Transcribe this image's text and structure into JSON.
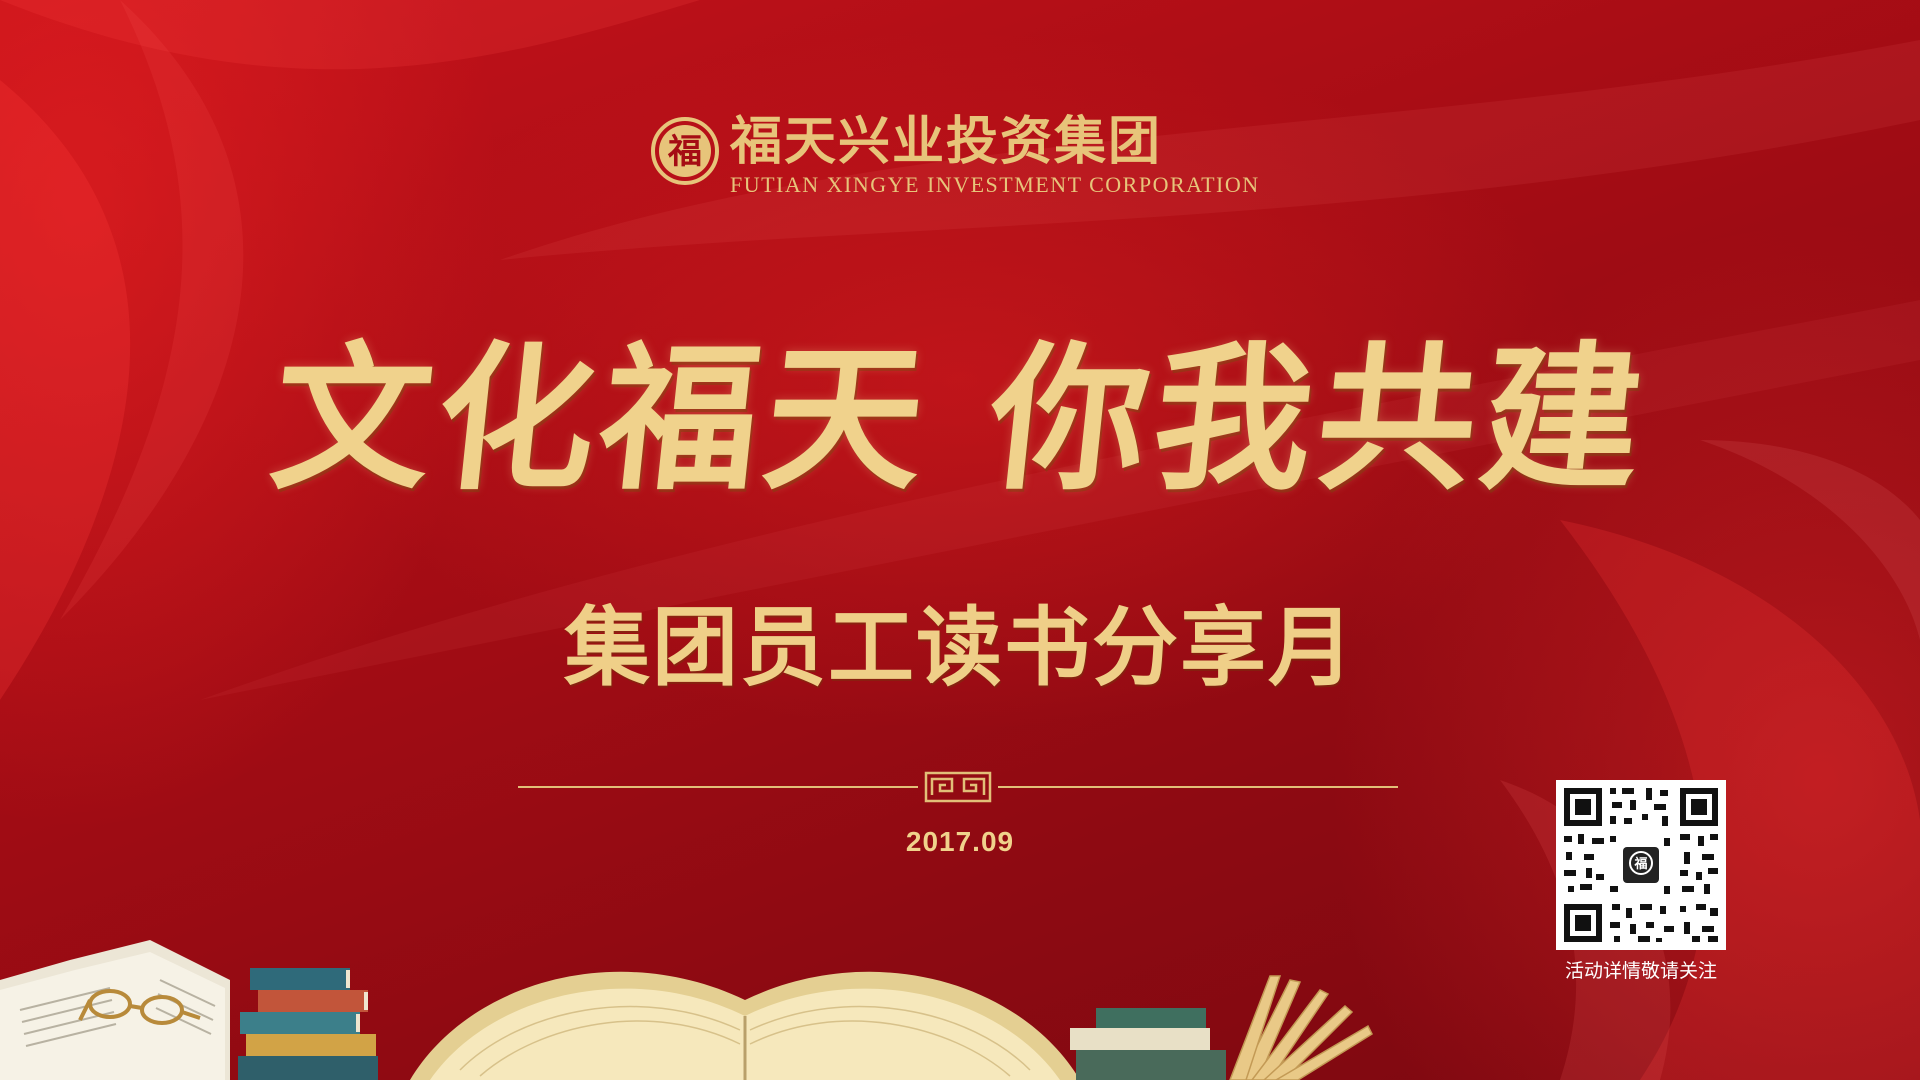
{
  "brand": {
    "emblem_char": "福",
    "name_cn": "福天兴业投资集团",
    "name_en": "FUTIAN XINGYE INVESTMENT CORPORATION"
  },
  "main": {
    "title": "文化福天  你我共建",
    "subtitle": "集团员工读书分享月",
    "date": "2017.09"
  },
  "qr": {
    "center_text": "福",
    "caption": "活动详情敬请关注"
  },
  "colors": {
    "gold": "#f0d28c",
    "background_red": "#a90d15"
  },
  "icons": [
    "logo-emblem-icon",
    "fret-ornament-icon",
    "qr-code",
    "books-decoration",
    "glasses-icon"
  ]
}
